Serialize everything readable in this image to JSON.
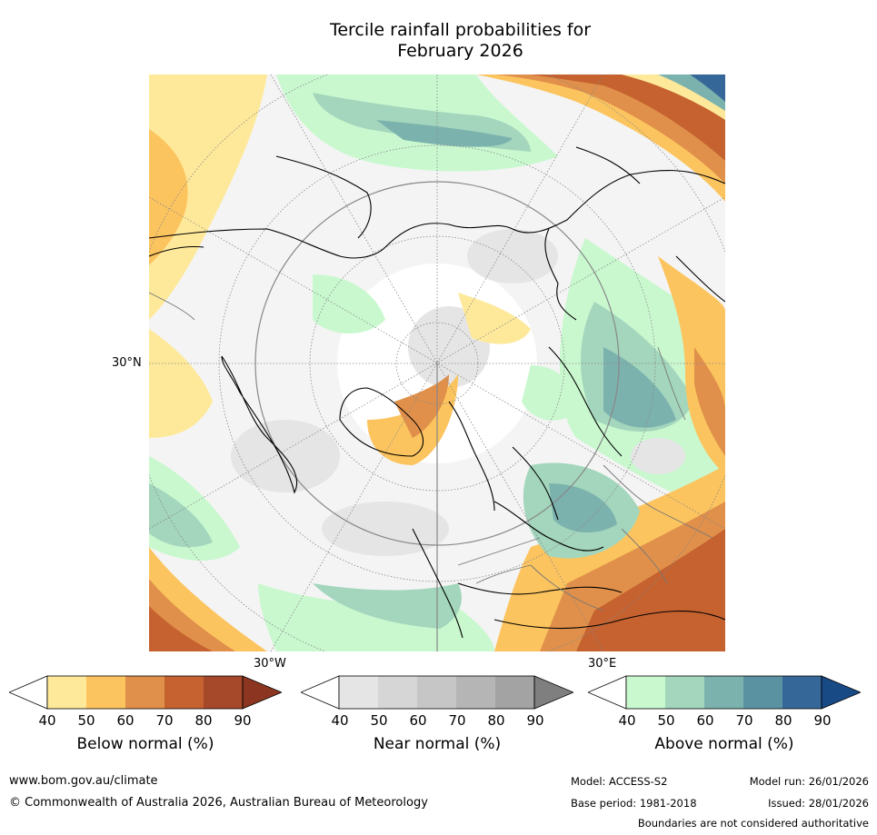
{
  "title": {
    "line1": "Tercile rainfall probabilities for",
    "line2": "February 2026"
  },
  "map": {
    "lat_label": "30°N",
    "lon_labels": [
      "30°W",
      "30°E"
    ]
  },
  "colorbars": [
    {
      "label": "Below normal (%)",
      "ticks": [
        "40",
        "50",
        "60",
        "70",
        "80",
        "90"
      ],
      "colors": [
        "#ffffff",
        "#fee99a",
        "#fcc45f",
        "#e0904a",
        "#c5622f",
        "#a6482a",
        "#8c3520"
      ]
    },
    {
      "label": "Near normal (%)",
      "ticks": [
        "40",
        "50",
        "60",
        "70",
        "80",
        "90"
      ],
      "colors": [
        "#ffffff",
        "#e5e5e5",
        "#d6d6d6",
        "#c6c6c6",
        "#b5b5b5",
        "#a3a3a3",
        "#7f7f7f"
      ]
    },
    {
      "label": "Above normal (%)",
      "ticks": [
        "40",
        "50",
        "60",
        "70",
        "80",
        "90"
      ],
      "colors": [
        "#ffffff",
        "#c9f8cf",
        "#a3d6bc",
        "#7cb2ae",
        "#5b92a2",
        "#356899",
        "#184a85"
      ]
    }
  ],
  "footer": {
    "url": "www.bom.gov.au/climate",
    "copyright": "© Commonwealth of Australia 2026, Australian Bureau of Meteorology",
    "model": "Model: ACCESS-S2",
    "base_period": "Base period: 1981-2018",
    "model_run": "Model run: 26/01/2026",
    "issued": "Issued: 28/01/2026",
    "disclaimer": "Boundaries are not considered authoritative"
  }
}
